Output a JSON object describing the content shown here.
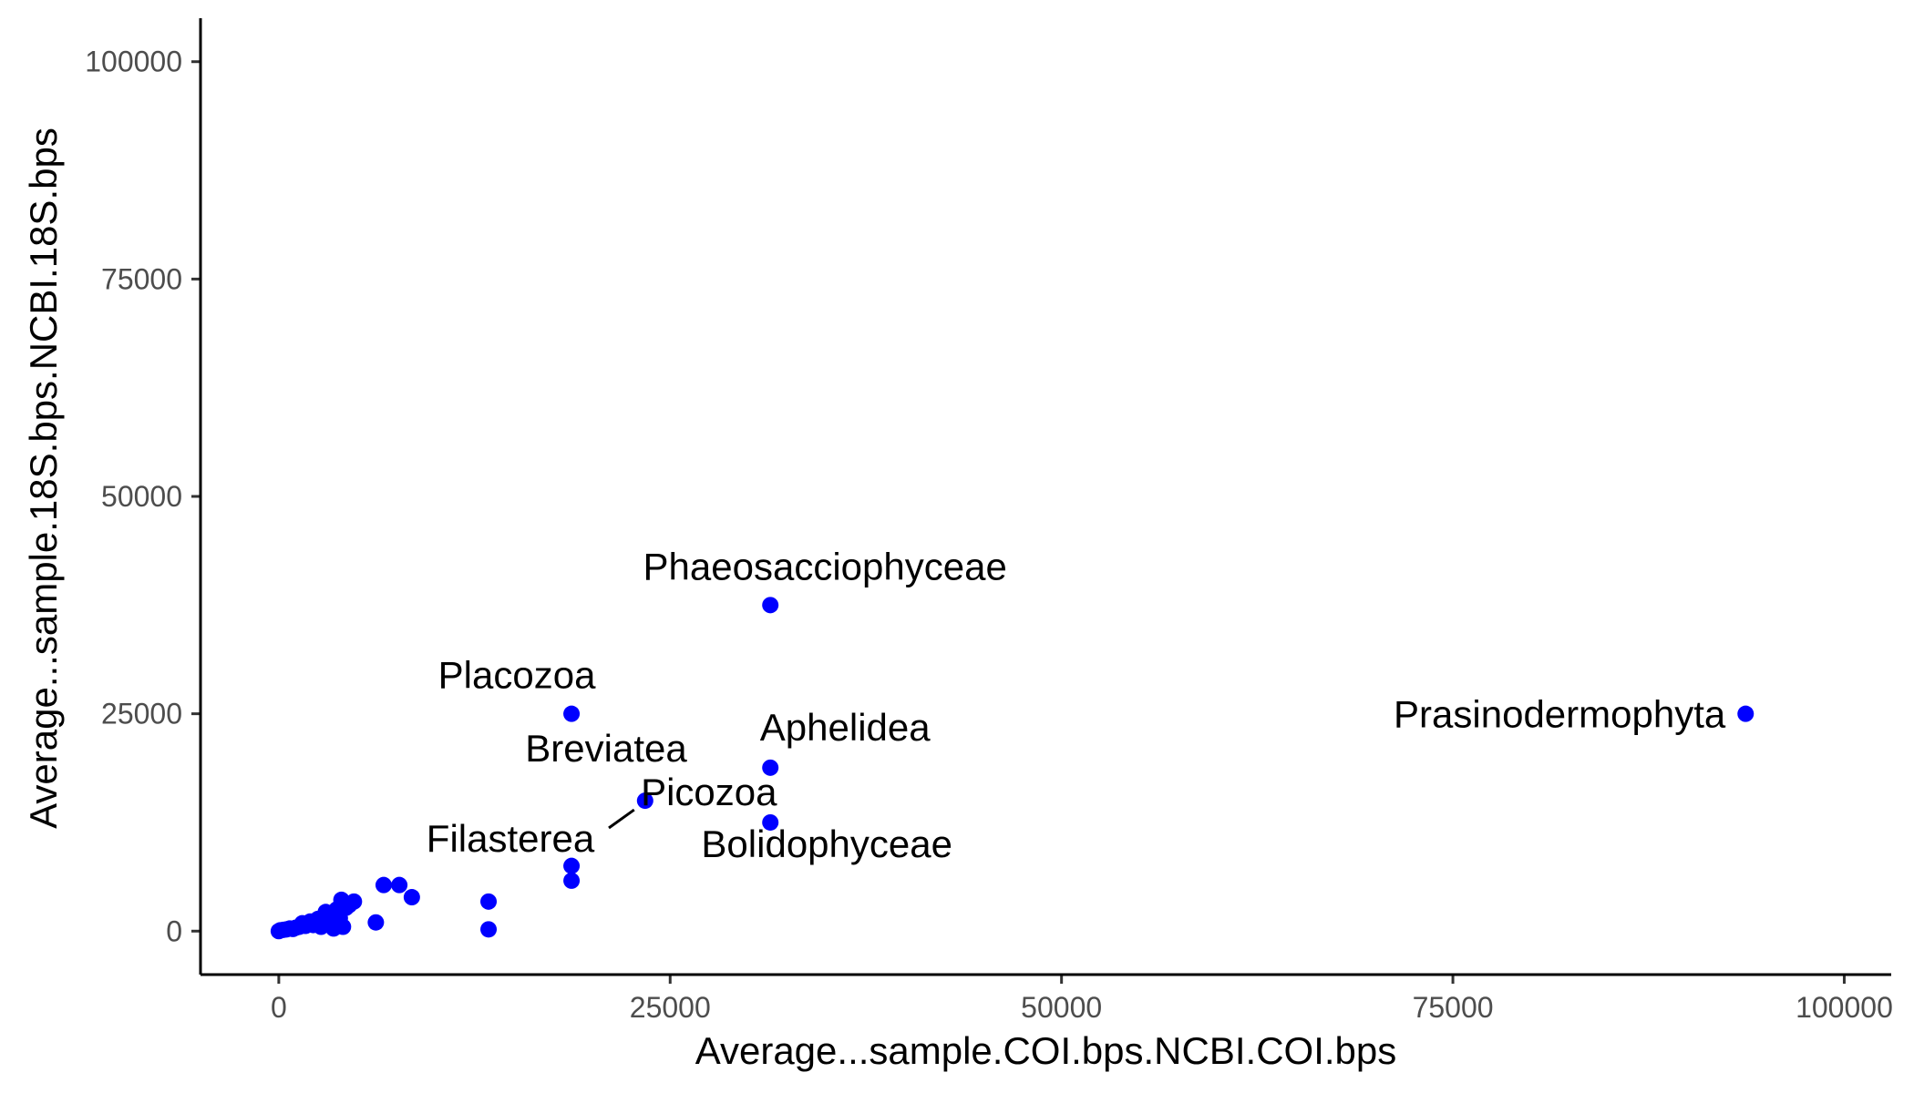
{
  "chart_data": {
    "type": "scatter",
    "xlabel": "Average...sample.COI.bps.NCBI.COI.bps",
    "ylabel": "Average...sample.18S.bps.NCBI.18S.bps",
    "xlim": [
      -5000,
      103000
    ],
    "ylim": [
      -5000,
      105000
    ],
    "x_ticks": [
      0,
      25000,
      50000,
      75000,
      100000
    ],
    "y_ticks": [
      0,
      25000,
      50000,
      75000,
      100000
    ],
    "grid": false,
    "point_color": "#0000ff",
    "points": [
      {
        "x": 0,
        "y": 0
      },
      {
        "x": 100,
        "y": 100
      },
      {
        "x": 300,
        "y": 150
      },
      {
        "x": 500,
        "y": 200
      },
      {
        "x": 700,
        "y": 300
      },
      {
        "x": 900,
        "y": 250
      },
      {
        "x": 1100,
        "y": 400
      },
      {
        "x": 1300,
        "y": 500
      },
      {
        "x": 1500,
        "y": 900
      },
      {
        "x": 1700,
        "y": 600
      },
      {
        "x": 2000,
        "y": 1100
      },
      {
        "x": 2200,
        "y": 700
      },
      {
        "x": 2500,
        "y": 1400
      },
      {
        "x": 2700,
        "y": 500
      },
      {
        "x": 3000,
        "y": 2200
      },
      {
        "x": 3200,
        "y": 1000
      },
      {
        "x": 3400,
        "y": 1800
      },
      {
        "x": 3500,
        "y": 300
      },
      {
        "x": 3700,
        "y": 2500
      },
      {
        "x": 3900,
        "y": 1500
      },
      {
        "x": 4000,
        "y": 3600
      },
      {
        "x": 4100,
        "y": 500
      },
      {
        "x": 4300,
        "y": 2700
      },
      {
        "x": 4500,
        "y": 3000
      },
      {
        "x": 4800,
        "y": 3400
      },
      {
        "x": 6200,
        "y": 1000
      },
      {
        "x": 6700,
        "y": 5300
      },
      {
        "x": 7700,
        "y": 5300
      },
      {
        "x": 8500,
        "y": 3900
      },
      {
        "x": 13400,
        "y": 3400
      },
      {
        "x": 13400,
        "y": 200
      },
      {
        "x": 18700,
        "y": 7500
      },
      {
        "x": 18700,
        "y": 5800
      },
      {
        "x": 18700,
        "y": 25000,
        "label": "Placozoa"
      },
      {
        "x": 23400,
        "y": 15000,
        "label": "Picozoa"
      },
      {
        "x": 31400,
        "y": 37500,
        "label": "Phaeosacciophyceae"
      },
      {
        "x": 31400,
        "y": 18800,
        "label": "Aphelidea"
      },
      {
        "x": 31400,
        "y": 12500,
        "label": "Bolidophyceae"
      },
      {
        "x": 93700,
        "y": 25000,
        "label": "Prasinodermophyta"
      }
    ],
    "annotations": [
      {
        "text": "Breviatea"
      },
      {
        "text": "Filasterea"
      }
    ]
  }
}
